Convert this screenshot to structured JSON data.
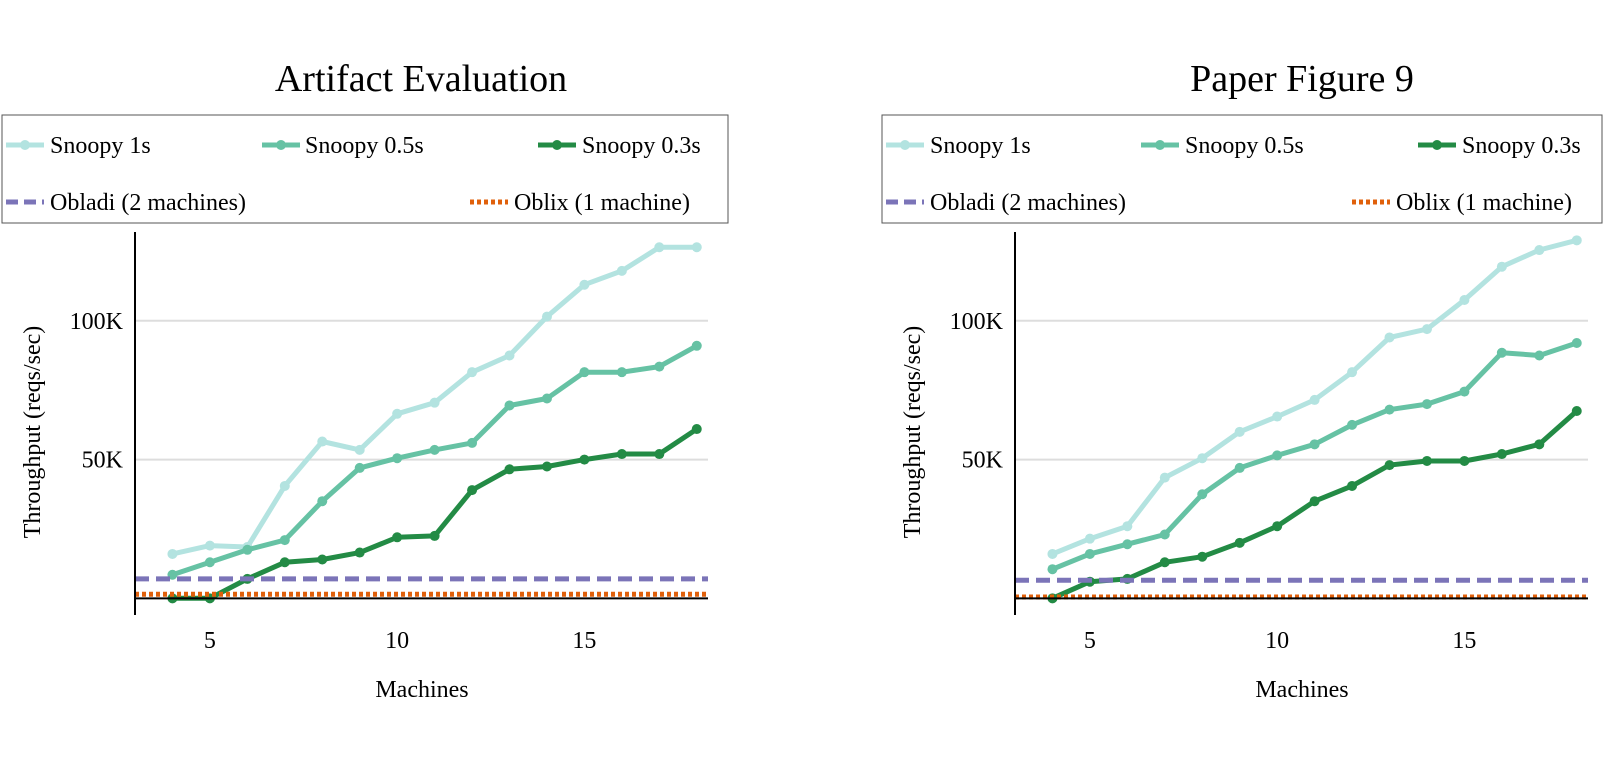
{
  "colors": {
    "snoopy_1s": "#b3e3e0",
    "snoopy_05s": "#66c2a4",
    "snoopy_03s": "#238b45",
    "obladi": "#7b74b8",
    "oblix": "#e0600b",
    "grid": "#dddddd",
    "axis": "#000000"
  },
  "chart_data": [
    {
      "type": "line",
      "title": "Artifact Evaluation",
      "xlabel": "Machines",
      "ylabel": "Throughput (reqs/sec)",
      "xlim": [
        3,
        18.3
      ],
      "ylim": [
        -6000,
        132000
      ],
      "xticks": [
        5,
        10,
        15
      ],
      "xtick_labels": [
        "5",
        "10",
        "15"
      ],
      "yticks": [
        50000,
        100000
      ],
      "ytick_labels": [
        "50K",
        "100K"
      ],
      "grid": "horizontal",
      "legend_placement": "top",
      "series": [
        {
          "name": "Snoopy 1s",
          "color_key": "snoopy_1s",
          "style": "line-marker",
          "x": [
            4,
            5,
            6,
            7,
            8,
            9,
            10,
            11,
            12,
            13,
            14,
            15,
            16,
            17,
            18
          ],
          "values": [
            16000,
            19000,
            18500,
            40500,
            56500,
            53500,
            66500,
            70500,
            81500,
            87500,
            101500,
            113000,
            118000,
            126500,
            126500
          ]
        },
        {
          "name": "Snoopy 0.5s",
          "color_key": "snoopy_05s",
          "style": "line-marker",
          "x": [
            4,
            5,
            6,
            7,
            8,
            9,
            10,
            11,
            12,
            13,
            14,
            15,
            16,
            17,
            18
          ],
          "values": [
            8500,
            13000,
            17500,
            21000,
            35000,
            47000,
            50500,
            53500,
            56000,
            69500,
            72000,
            81500,
            81500,
            83500,
            91000
          ]
        },
        {
          "name": "Snoopy 0.3s",
          "color_key": "snoopy_03s",
          "style": "line-marker",
          "x": [
            4,
            5,
            6,
            7,
            8,
            9,
            10,
            11,
            12,
            13,
            14,
            15,
            16,
            17,
            18
          ],
          "values": [
            0,
            0,
            7000,
            13000,
            14000,
            16500,
            22000,
            22500,
            39000,
            46500,
            47500,
            50000,
            52000,
            52000,
            61000
          ]
        },
        {
          "name": "Obladi (2 machines)",
          "color_key": "obladi",
          "style": "dashed",
          "x": [
            3,
            18.3
          ],
          "values": [
            7000,
            7000
          ]
        },
        {
          "name": "Oblix (1 machine)",
          "color_key": "oblix",
          "style": "dotted",
          "x": [
            3,
            18.3
          ],
          "values": [
            1500,
            1500
          ]
        }
      ]
    },
    {
      "type": "line",
      "title": "Paper Figure 9",
      "xlabel": "Machines",
      "ylabel": "Throughput (reqs/sec)",
      "xlim": [
        3,
        18.3
      ],
      "ylim": [
        -6000,
        132000
      ],
      "xticks": [
        5,
        10,
        15
      ],
      "xtick_labels": [
        "5",
        "10",
        "15"
      ],
      "yticks": [
        50000,
        100000
      ],
      "ytick_labels": [
        "50K",
        "100K"
      ],
      "grid": "horizontal",
      "legend_placement": "top",
      "series": [
        {
          "name": "Snoopy 1s",
          "color_key": "snoopy_1s",
          "style": "line-marker",
          "x": [
            4,
            5,
            6,
            7,
            8,
            9,
            10,
            11,
            12,
            13,
            14,
            15,
            16,
            17,
            18
          ],
          "values": [
            16000,
            21500,
            26000,
            43500,
            50500,
            60000,
            65500,
            71500,
            81500,
            94000,
            97000,
            107500,
            119500,
            125500,
            129000
          ]
        },
        {
          "name": "Snoopy 0.5s",
          "color_key": "snoopy_05s",
          "style": "line-marker",
          "x": [
            4,
            5,
            6,
            7,
            8,
            9,
            10,
            11,
            12,
            13,
            14,
            15,
            16,
            17,
            18
          ],
          "values": [
            10500,
            16000,
            19500,
            23000,
            37500,
            47000,
            51500,
            55500,
            62500,
            68000,
            70000,
            74500,
            88500,
            87500,
            92000
          ]
        },
        {
          "name": "Snoopy 0.3s",
          "color_key": "snoopy_03s",
          "style": "line-marker",
          "x": [
            4,
            5,
            6,
            7,
            8,
            9,
            10,
            11,
            12,
            13,
            14,
            15,
            16,
            17,
            18
          ],
          "values": [
            0,
            6000,
            7000,
            13000,
            15000,
            20000,
            26000,
            35000,
            40500,
            48000,
            49500,
            49500,
            52000,
            55500,
            67500
          ]
        },
        {
          "name": "Obladi (2 machines)",
          "color_key": "obladi",
          "style": "dashed",
          "x": [
            3,
            18.3
          ],
          "values": [
            6500,
            6500
          ]
        },
        {
          "name": "Oblix (1 machine)",
          "color_key": "oblix",
          "style": "dotted",
          "x": [
            3,
            18.3
          ],
          "values": [
            500,
            500
          ]
        }
      ]
    }
  ]
}
